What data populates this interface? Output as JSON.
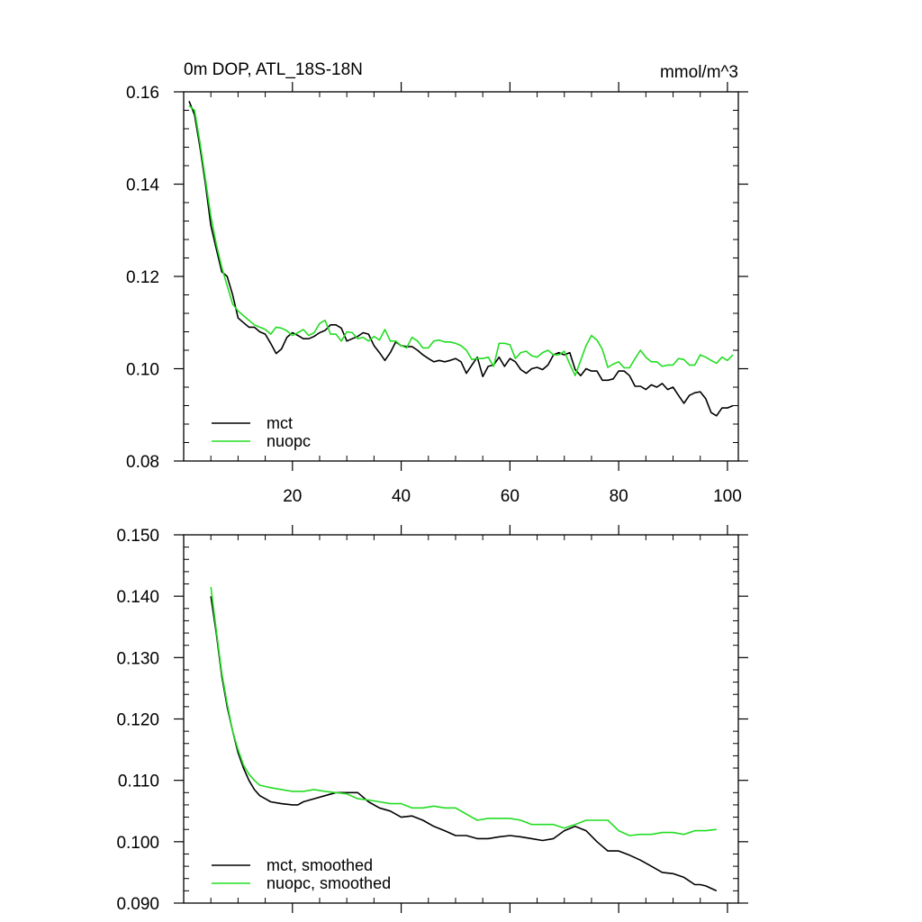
{
  "chart_data": [
    {
      "type": "line",
      "title": "0m DOP, ATL_18S-18N",
      "units": "mmol/m^3",
      "xlabel": "",
      "ylabel": "",
      "xlim": [
        0,
        102
      ],
      "ylim": [
        0.08,
        0.16
      ],
      "xticks": [
        20,
        40,
        60,
        80,
        100
      ],
      "xtick_labels": [
        "20",
        "40",
        "60",
        "80",
        "100"
      ],
      "yticks": [
        0.08,
        0.1,
        0.12,
        0.14,
        0.16
      ],
      "ytick_labels": [
        "0.08",
        "0.10",
        "0.12",
        "0.14",
        "0.16"
      ],
      "legend": "bottom-left",
      "grid": false,
      "series": [
        {
          "name": "mct",
          "color": "#000000",
          "x": [
            1,
            2,
            3,
            4,
            5,
            6,
            7,
            8,
            9,
            10,
            11,
            12,
            13,
            14,
            15,
            16,
            17,
            18,
            19,
            20,
            21,
            22,
            23,
            24,
            25,
            26,
            27,
            28,
            29,
            30,
            31,
            32,
            33,
            34,
            35,
            36,
            37,
            38,
            39,
            40,
            41,
            42,
            43,
            44,
            45,
            46,
            47,
            48,
            49,
            50,
            51,
            52,
            53,
            54,
            55,
            56,
            57,
            58,
            59,
            60,
            61,
            62,
            63,
            64,
            65,
            66,
            67,
            68,
            69,
            70,
            71,
            72,
            73,
            74,
            75,
            76,
            77,
            78,
            79,
            80,
            81,
            82,
            83,
            84,
            85,
            86,
            87,
            88,
            89,
            90,
            91,
            92,
            93,
            94,
            95,
            96,
            97,
            98,
            99,
            100,
            101
          ],
          "y": [
            0.158,
            0.155,
            0.148,
            0.14,
            0.131,
            0.126,
            0.121,
            0.12,
            0.116,
            0.111,
            0.11,
            0.109,
            0.109,
            0.108,
            0.1075,
            0.1055,
            0.1033,
            0.1043,
            0.1068,
            0.1078,
            0.1072,
            0.1065,
            0.1065,
            0.107,
            0.1078,
            0.1083,
            0.1095,
            0.1095,
            0.1088,
            0.106,
            0.1065,
            0.107,
            0.1078,
            0.1075,
            0.105,
            0.1035,
            0.1018,
            0.1035,
            0.1058,
            0.105,
            0.1048,
            0.1048,
            0.104,
            0.103,
            0.1022,
            0.1015,
            0.1018,
            0.1015,
            0.1018,
            0.1022,
            0.1015,
            0.099,
            0.1008,
            0.1025,
            0.0983,
            0.1005,
            0.1008,
            0.1025,
            0.1005,
            0.1022,
            0.1015,
            0.0998,
            0.099,
            0.1,
            0.1003,
            0.0998,
            0.1008,
            0.103,
            0.1035,
            0.103,
            0.1035,
            0.0998,
            0.0985,
            0.1,
            0.0995,
            0.0995,
            0.0975,
            0.0975,
            0.0978,
            0.0995,
            0.0995,
            0.0985,
            0.0962,
            0.0962,
            0.0955,
            0.0965,
            0.096,
            0.0968,
            0.0955,
            0.096,
            0.0942,
            0.0925,
            0.0942,
            0.0948,
            0.095,
            0.0935,
            0.0905,
            0.0898,
            0.0915,
            0.0915,
            0.092
          ]
        },
        {
          "name": "nuopc",
          "color": "#22dd22",
          "x": [
            1,
            2,
            3,
            4,
            5,
            6,
            7,
            8,
            9,
            10,
            11,
            12,
            13,
            14,
            15,
            16,
            17,
            18,
            19,
            20,
            21,
            22,
            23,
            24,
            25,
            26,
            27,
            28,
            29,
            30,
            31,
            32,
            33,
            34,
            35,
            36,
            37,
            38,
            39,
            40,
            41,
            42,
            43,
            44,
            45,
            46,
            47,
            48,
            49,
            50,
            51,
            52,
            53,
            54,
            55,
            56,
            57,
            58,
            59,
            60,
            61,
            62,
            63,
            64,
            65,
            66,
            67,
            68,
            69,
            70,
            71,
            72,
            73,
            74,
            75,
            76,
            77,
            78,
            79,
            80,
            81,
            82,
            83,
            84,
            85,
            86,
            87,
            88,
            89,
            90,
            91,
            92,
            93,
            94,
            95,
            96,
            97,
            98,
            99,
            100,
            101
          ],
          "y": [
            0.157,
            0.156,
            0.149,
            0.141,
            0.133,
            0.127,
            0.122,
            0.118,
            0.114,
            0.1125,
            0.1115,
            0.1105,
            0.1095,
            0.109,
            0.1085,
            0.1075,
            0.109,
            0.1088,
            0.1082,
            0.1072,
            0.1078,
            0.1085,
            0.1072,
            0.1078,
            0.1098,
            0.1105,
            0.1075,
            0.1075,
            0.106,
            0.108,
            0.1078,
            0.1065,
            0.1068,
            0.106,
            0.107,
            0.1062,
            0.1085,
            0.106,
            0.106,
            0.105,
            0.1045,
            0.1068,
            0.106,
            0.1045,
            0.1045,
            0.106,
            0.1062,
            0.1058,
            0.1058,
            0.1055,
            0.105,
            0.104,
            0.102,
            0.1022,
            0.1022,
            0.1025,
            0.1005,
            0.1055,
            0.1055,
            0.1052,
            0.1022,
            0.1035,
            0.1038,
            0.1028,
            0.1025,
            0.1035,
            0.104,
            0.103,
            0.103,
            0.1038,
            0.101,
            0.0985,
            0.1018,
            0.105,
            0.1072,
            0.1062,
            0.1042,
            0.1003,
            0.101,
            0.1015,
            0.1002,
            0.1002,
            0.1022,
            0.104,
            0.1025,
            0.1015,
            0.1015,
            0.1005,
            0.1008,
            0.1008,
            0.1022,
            0.102,
            0.1008,
            0.1008,
            0.103,
            0.1025,
            0.1018,
            0.1012,
            0.1025,
            0.1018,
            0.103
          ]
        }
      ]
    },
    {
      "type": "line",
      "title": "",
      "xlabel": "",
      "ylabel": "",
      "xlim": [
        0,
        102
      ],
      "ylim": [
        0.09,
        0.15
      ],
      "xticks": [
        20,
        40,
        60,
        80,
        100
      ],
      "xtick_labels": [],
      "yticks": [
        0.09,
        0.1,
        0.11,
        0.12,
        0.13,
        0.14,
        0.15
      ],
      "ytick_labels": [
        "0.090",
        "0.100",
        "0.110",
        "0.120",
        "0.130",
        "0.140",
        "0.150"
      ],
      "legend": "bottom-left",
      "grid": false,
      "series": [
        {
          "name": "mct, smoothed",
          "color": "#000000",
          "x": [
            5,
            6,
            7,
            8,
            9,
            10,
            11,
            12,
            13,
            14,
            15,
            16,
            18,
            20,
            21,
            22,
            24,
            26,
            28,
            30,
            32,
            34,
            36,
            38,
            40,
            42,
            44,
            46,
            48,
            50,
            52,
            54,
            56,
            58,
            60,
            62,
            64,
            66,
            68,
            70,
            72,
            74,
            76,
            78,
            80,
            82,
            84,
            86,
            88,
            90,
            92,
            94,
            95,
            96,
            98
          ],
          "y": [
            0.14,
            0.134,
            0.127,
            0.122,
            0.118,
            0.1145,
            0.112,
            0.11,
            0.1085,
            0.1075,
            0.107,
            0.1065,
            0.1062,
            0.106,
            0.106,
            0.1065,
            0.107,
            0.1075,
            0.108,
            0.108,
            0.108,
            0.1065,
            0.1055,
            0.105,
            0.104,
            0.1042,
            0.1035,
            0.1025,
            0.1018,
            0.101,
            0.101,
            0.1005,
            0.1005,
            0.1008,
            0.101,
            0.1008,
            0.1005,
            0.1002,
            0.1005,
            0.1018,
            0.1025,
            0.1018,
            0.1,
            0.0985,
            0.0985,
            0.0978,
            0.097,
            0.096,
            0.095,
            0.0948,
            0.0942,
            0.093,
            0.093,
            0.0928,
            0.092
          ]
        },
        {
          "name": "nuopc, smoothed",
          "color": "#22dd22",
          "x": [
            5,
            6,
            7,
            8,
            9,
            10,
            11,
            12,
            13,
            14,
            16,
            18,
            20,
            22,
            24,
            26,
            28,
            30,
            32,
            34,
            36,
            38,
            40,
            42,
            44,
            46,
            48,
            50,
            52,
            54,
            56,
            58,
            60,
            62,
            64,
            66,
            68,
            70,
            72,
            74,
            76,
            78,
            80,
            82,
            84,
            86,
            88,
            90,
            92,
            94,
            96,
            98
          ],
          "y": [
            0.1415,
            0.1345,
            0.1275,
            0.1225,
            0.118,
            0.115,
            0.1125,
            0.111,
            0.11,
            0.1092,
            0.1088,
            0.1085,
            0.1082,
            0.1082,
            0.1085,
            0.1082,
            0.108,
            0.1078,
            0.107,
            0.1068,
            0.1065,
            0.1062,
            0.1062,
            0.1055,
            0.1055,
            0.1058,
            0.1055,
            0.1055,
            0.1045,
            0.1035,
            0.1038,
            0.1038,
            0.1038,
            0.1035,
            0.1028,
            0.1028,
            0.1028,
            0.1022,
            0.1028,
            0.1035,
            0.1035,
            0.1035,
            0.1018,
            0.101,
            0.1012,
            0.1012,
            0.1015,
            0.1015,
            0.1012,
            0.1018,
            0.1018,
            0.102
          ]
        }
      ]
    }
  ]
}
